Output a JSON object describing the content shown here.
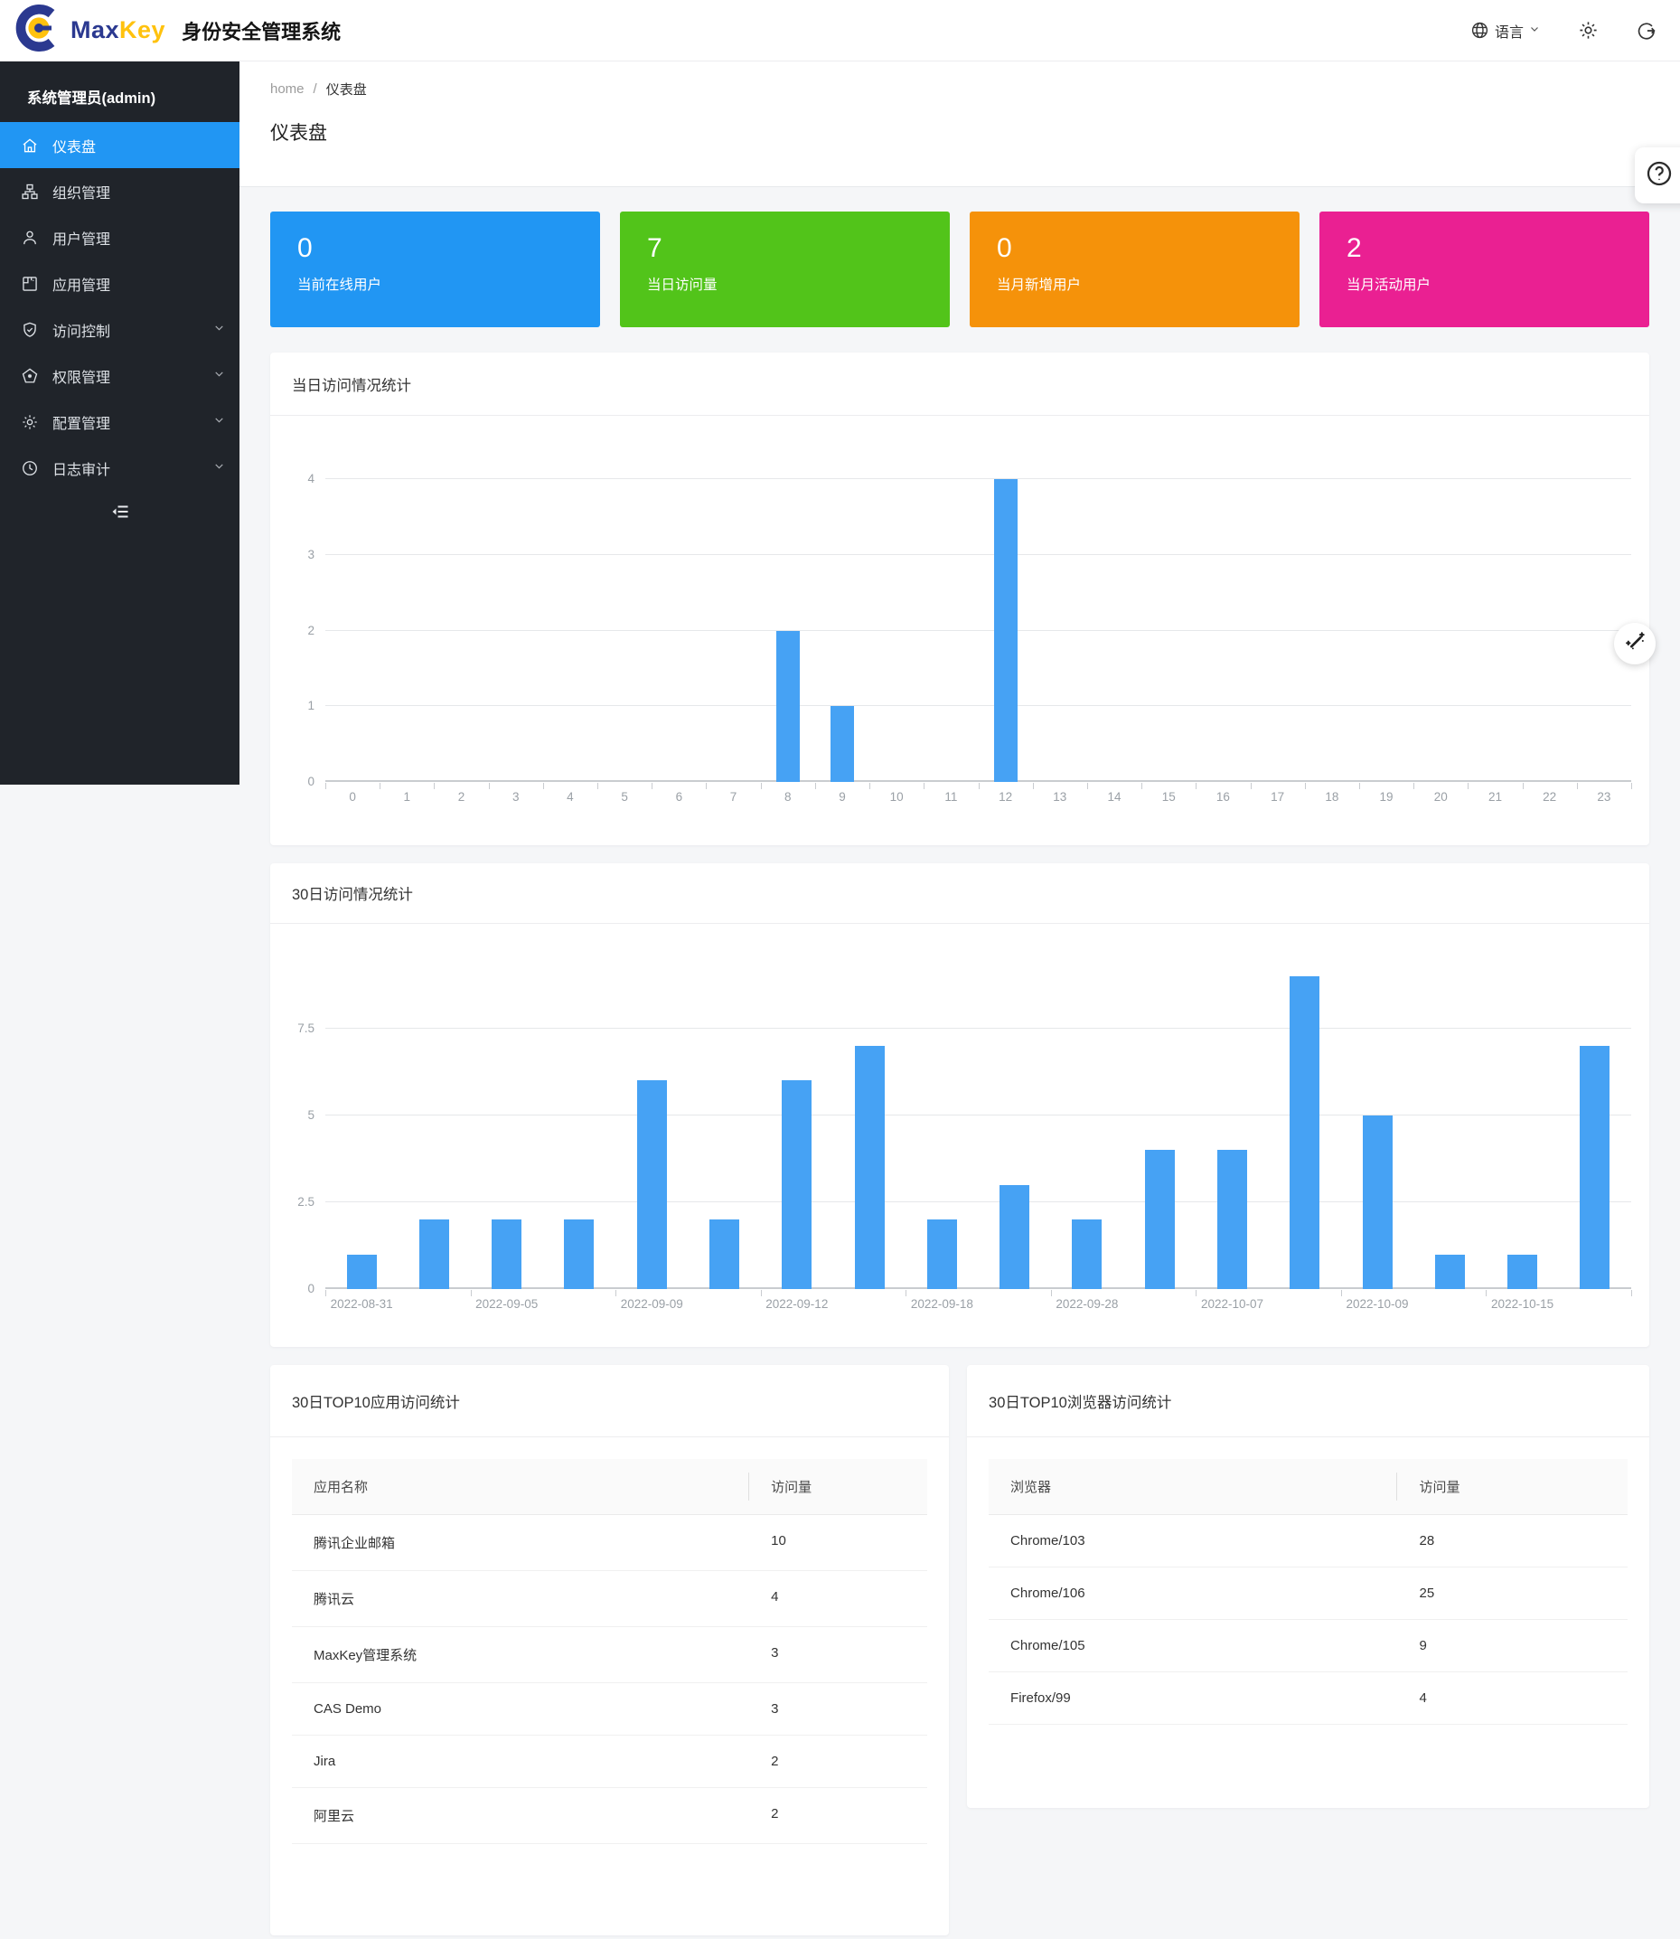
{
  "header": {
    "brand_max": "Max",
    "brand_key": "Key",
    "app_title": "身份安全管理系统",
    "language_label": "语言"
  },
  "sidebar": {
    "admin_label": "系统管理员(admin)",
    "items": [
      {
        "name": "dashboard",
        "label": "仪表盘",
        "icon": "home",
        "active": true,
        "chevron": false
      },
      {
        "name": "organizations",
        "label": "组织管理",
        "icon": "org",
        "active": false,
        "chevron": false
      },
      {
        "name": "users",
        "label": "用户管理",
        "icon": "user",
        "active": false,
        "chevron": false
      },
      {
        "name": "applications",
        "label": "应用管理",
        "icon": "app",
        "active": false,
        "chevron": false
      },
      {
        "name": "access-control",
        "label": "访问控制",
        "icon": "shield",
        "active": false,
        "chevron": true
      },
      {
        "name": "permissions",
        "label": "权限管理",
        "icon": "pentagon",
        "active": false,
        "chevron": true
      },
      {
        "name": "configuration",
        "label": "配置管理",
        "icon": "gear",
        "active": false,
        "chevron": true
      },
      {
        "name": "audit-log",
        "label": "日志审计",
        "icon": "clock",
        "active": false,
        "chevron": true
      }
    ]
  },
  "breadcrumb": {
    "home": "home",
    "separator": "/",
    "current": "仪表盘"
  },
  "page_title": "仪表盘",
  "stat_cards": [
    {
      "name": "online-users",
      "value": "0",
      "label": "当前在线用户",
      "color": "#2196f3"
    },
    {
      "name": "daily-visits",
      "value": "7",
      "label": "当日访问量",
      "color": "#52c41a"
    },
    {
      "name": "new-users-month",
      "value": "0",
      "label": "当月新增用户",
      "color": "#f5920a"
    },
    {
      "name": "active-users-month",
      "value": "2",
      "label": "当月活动用户",
      "color": "#ea2092"
    }
  ],
  "chart_data": [
    {
      "type": "bar",
      "title": "当日访问情况统计",
      "categories": [
        "0",
        "1",
        "2",
        "3",
        "4",
        "5",
        "6",
        "7",
        "8",
        "9",
        "10",
        "11",
        "12",
        "13",
        "14",
        "15",
        "16",
        "17",
        "18",
        "19",
        "20",
        "21",
        "22",
        "23"
      ],
      "values": [
        0,
        0,
        0,
        0,
        0,
        0,
        0,
        0,
        2,
        1,
        0,
        0,
        4,
        0,
        0,
        0,
        0,
        0,
        0,
        0,
        0,
        0,
        0,
        0
      ],
      "xlabel": "",
      "ylabel": "",
      "ylim": [
        0,
        4
      ],
      "yticks": [
        0,
        1,
        2,
        3,
        4
      ],
      "grid": true,
      "legend": "none",
      "bar_color": "#46a2f4"
    },
    {
      "type": "bar",
      "title": "30日访问情况统计",
      "categories": [
        "2022-08-31",
        "",
        "2022-09-05",
        "",
        "2022-09-09",
        "",
        "2022-09-12",
        "",
        "2022-09-18",
        "",
        "2022-09-28",
        "",
        "2022-10-07",
        "",
        "2022-10-09",
        "",
        "2022-10-15",
        ""
      ],
      "values": [
        1,
        2,
        2,
        2,
        6,
        2,
        6,
        7,
        2,
        3,
        2,
        4,
        4,
        9,
        5,
        1,
        1,
        7
      ],
      "xlabel": "",
      "ylabel": "",
      "ylim": [
        0,
        9
      ],
      "yticks": [
        0,
        2.5,
        5,
        7.5
      ],
      "grid": true,
      "legend": "none",
      "bar_color": "#46a2f4"
    }
  ],
  "tables": [
    {
      "name": "top10-apps",
      "title": "30日TOP10应用访问统计",
      "headers": [
        "应用名称",
        "访问量"
      ],
      "rows": [
        [
          "腾讯企业邮箱",
          "10"
        ],
        [
          "腾讯云",
          "4"
        ],
        [
          "MaxKey管理系统",
          "3"
        ],
        [
          "CAS Demo",
          "3"
        ],
        [
          "Jira",
          "2"
        ],
        [
          "阿里云",
          "2"
        ]
      ]
    },
    {
      "name": "top10-browsers",
      "title": "30日TOP10浏览器访问统计",
      "headers": [
        "浏览器",
        "访问量"
      ],
      "rows": [
        [
          "Chrome/103",
          "28"
        ],
        [
          "Chrome/106",
          "25"
        ],
        [
          "Chrome/105",
          "9"
        ],
        [
          "Firefox/99",
          "4"
        ]
      ]
    }
  ],
  "colors": {
    "accent_blue": "#2196f3",
    "sidebar_bg": "#20242a",
    "chart_bar": "#46a2f4",
    "brand_blue": "#2b3990",
    "brand_yellow": "#ffc20e"
  }
}
